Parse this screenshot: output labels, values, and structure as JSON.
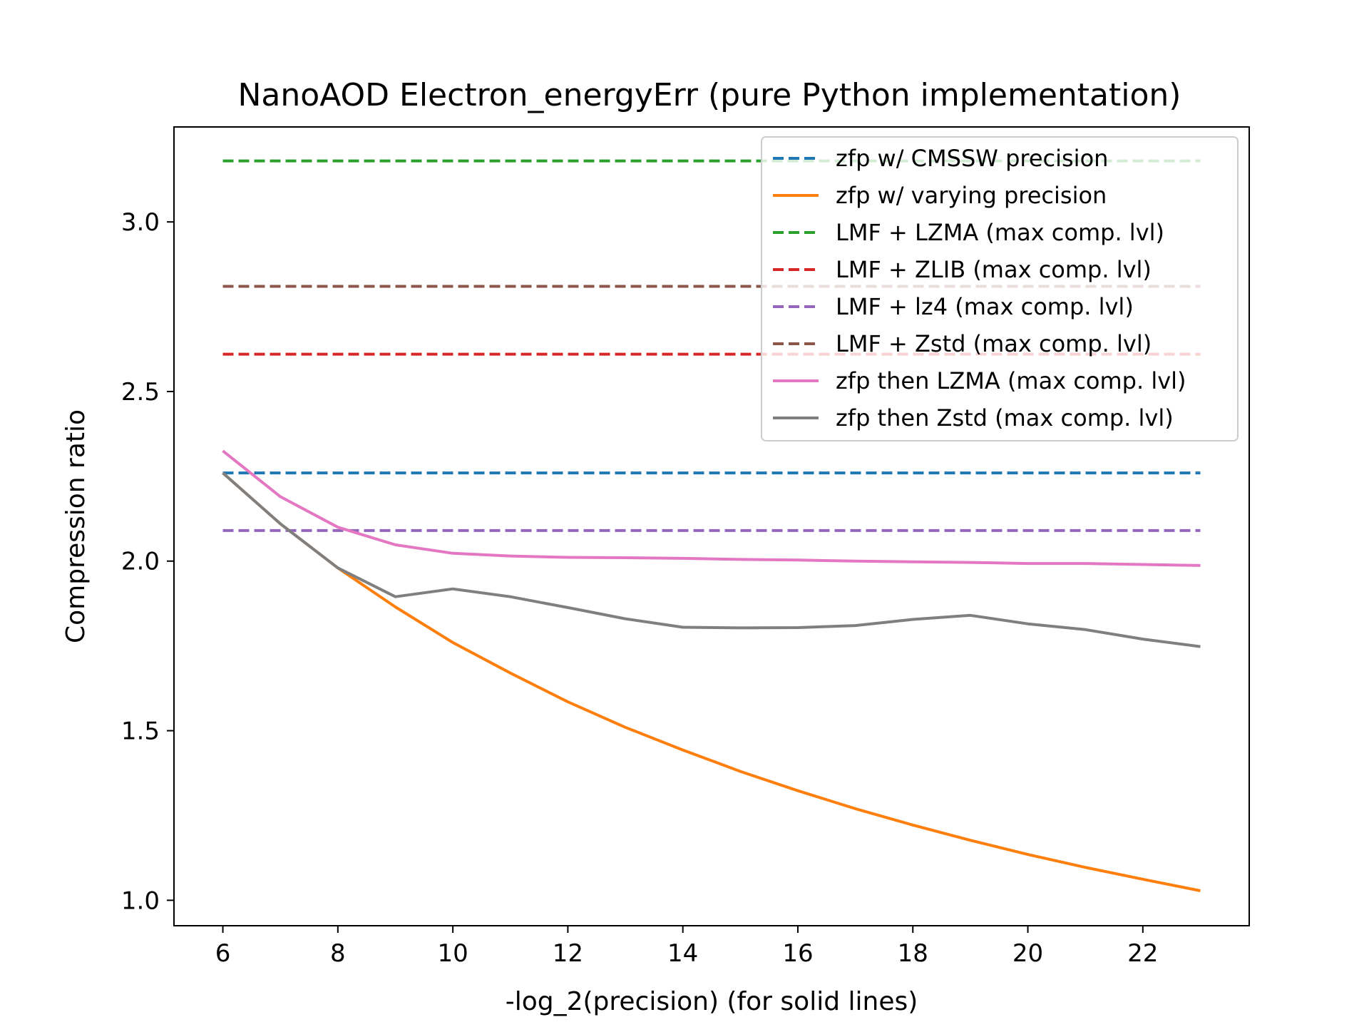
{
  "chart_data": {
    "type": "line",
    "title": "NanoAOD Electron_energyErr (pure Python implementation)",
    "xlabel": "-log_2(precision) (for solid lines)",
    "ylabel": "Compression ratio",
    "xlim": [
      5.15,
      23.85
    ],
    "ylim": [
      0.925,
      3.28
    ],
    "xticks": [
      6,
      8,
      10,
      12,
      14,
      16,
      18,
      20,
      22
    ],
    "xtick_labels": [
      "6",
      "8",
      "10",
      "12",
      "14",
      "16",
      "18",
      "20",
      "22"
    ],
    "yticks": [
      1.0,
      1.5,
      2.0,
      2.5,
      3.0
    ],
    "ytick_labels": [
      "1.0",
      "1.5",
      "2.0",
      "2.5",
      "3.0"
    ],
    "grid": false,
    "legend_position": "upper-right",
    "series": [
      {
        "name": "zfp w/ CMSSW precision",
        "style": "dashed",
        "color": "#1f77b4",
        "x": [
          6,
          23
        ],
        "y": [
          2.26,
          2.26
        ]
      },
      {
        "name": "zfp w/ varying precision",
        "style": "solid",
        "color": "#ff7f0e",
        "x": [
          6,
          7,
          8,
          9,
          10,
          11,
          12,
          13,
          14,
          15,
          16,
          17,
          18,
          19,
          20,
          21,
          22,
          23
        ],
        "y": [
          2.26,
          2.11,
          1.98,
          1.865,
          1.76,
          1.67,
          1.585,
          1.51,
          1.443,
          1.38,
          1.323,
          1.27,
          1.222,
          1.177,
          1.135,
          1.097,
          1.062,
          1.028
        ]
      },
      {
        "name": "LMF + LZMA (max comp. lvl)",
        "style": "dashed",
        "color": "#2ca02c",
        "x": [
          6,
          23
        ],
        "y": [
          3.18,
          3.18
        ]
      },
      {
        "name": "LMF + ZLIB (max comp. lvl)",
        "style": "dashed",
        "color": "#d62728",
        "x": [
          6,
          23
        ],
        "y": [
          2.61,
          2.61
        ]
      },
      {
        "name": "LMF + lz4 (max comp. lvl)",
        "style": "dashed",
        "color": "#9467bd",
        "x": [
          6,
          23
        ],
        "y": [
          2.09,
          2.09
        ]
      },
      {
        "name": "LMF + Zstd (max comp. lvl)",
        "style": "dashed",
        "color": "#8c564b",
        "x": [
          6,
          23
        ],
        "y": [
          2.81,
          2.81
        ]
      },
      {
        "name": "zfp then LZMA (max comp. lvl)",
        "style": "solid",
        "color": "#e377c2",
        "x": [
          6,
          7,
          8,
          9,
          10,
          11,
          12,
          13,
          14,
          15,
          16,
          17,
          18,
          19,
          20,
          21,
          22,
          23
        ],
        "y": [
          2.325,
          2.19,
          2.1,
          2.048,
          2.023,
          2.015,
          2.011,
          2.01,
          2.008,
          2.005,
          2.003,
          2.0,
          1.998,
          1.996,
          1.993,
          1.993,
          1.99,
          1.987
        ]
      },
      {
        "name": "zfp then Zstd (max comp. lvl)",
        "style": "solid",
        "color": "#7f7f7f",
        "x": [
          6,
          7,
          8,
          9,
          10,
          11,
          12,
          13,
          14,
          15,
          16,
          17,
          18,
          19,
          20,
          21,
          22,
          23
        ],
        "y": [
          2.26,
          2.11,
          1.98,
          1.895,
          1.918,
          1.895,
          1.863,
          1.83,
          1.805,
          1.803,
          1.804,
          1.81,
          1.828,
          1.84,
          1.815,
          1.798,
          1.77,
          1.748
        ]
      }
    ]
  }
}
